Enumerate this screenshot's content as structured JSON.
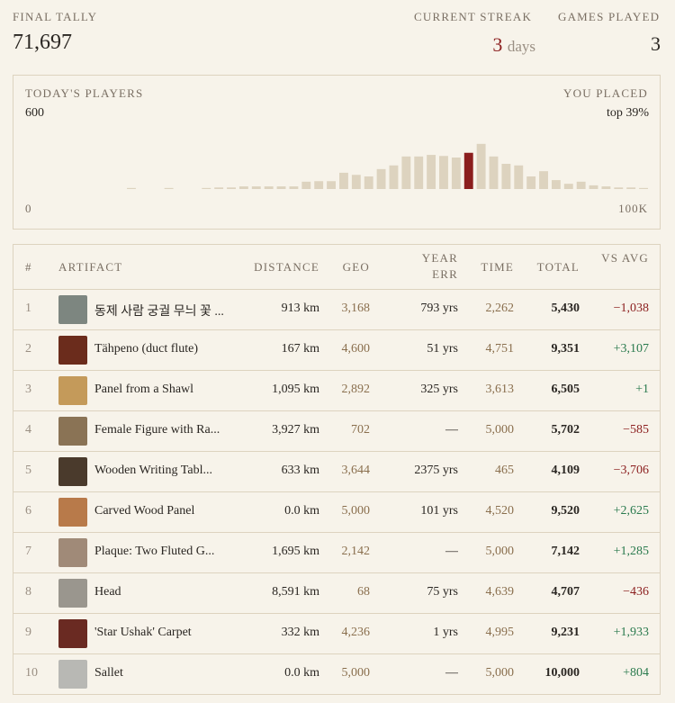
{
  "header": {
    "final_tally_label": "FINAL TALLY",
    "final_tally": "71,697",
    "streak_label": "CURRENT STREAK",
    "streak_value": "3",
    "streak_unit": "days",
    "games_label": "GAMES PLAYED",
    "games_value": "3"
  },
  "histogram": {
    "title": "TODAY'S PLAYERS",
    "placed_label": "YOU PLACED",
    "placed_value": "top 39%",
    "ylim": [
      0,
      600
    ],
    "xticks": [
      0,
      {
        "value": 100000,
        "label": "100K"
      }
    ],
    "values": [
      0,
      0,
      0,
      0,
      0,
      0,
      0,
      0,
      10,
      0,
      0,
      10,
      0,
      0,
      10,
      15,
      15,
      25,
      25,
      25,
      25,
      25,
      70,
      75,
      75,
      155,
      135,
      120,
      190,
      225,
      310,
      310,
      325,
      315,
      300,
      345,
      430,
      310,
      240,
      225,
      120,
      170,
      85,
      50,
      70,
      35,
      25,
      15,
      15,
      10
    ],
    "color": "#ddd3bf",
    "highlight_index": 35,
    "highlight_color": "#8b1e1e"
  },
  "table": {
    "columns": [
      "#",
      "ARTIFACT",
      "DISTANCE",
      "GEO",
      "YEAR ERR",
      "TIME",
      "TOTAL",
      "VS AVG"
    ],
    "rows": [
      [
        "1",
        "동제 사람 궁궐 무늬 꽃 ...",
        "913 km",
        "3,168",
        "793 yrs",
        "2,262",
        "5,430",
        "−1,038"
      ],
      [
        "2",
        "Tähpeno (duct flute)",
        "167 km",
        "4,600",
        "51 yrs",
        "4,751",
        "9,351",
        "+3,107"
      ],
      [
        "3",
        "Panel from a Shawl",
        "1,095 km",
        "2,892",
        "325 yrs",
        "3,613",
        "6,505",
        "+1"
      ],
      [
        "4",
        "Female Figure with Ra...",
        "3,927 km",
        "702",
        "—",
        "5,000",
        "5,702",
        "−585"
      ],
      [
        "5",
        "Wooden Writing Tabl...",
        "633 km",
        "3,644",
        "2375 yrs",
        "465",
        "4,109",
        "−3,706"
      ],
      [
        "6",
        "Carved Wood Panel",
        "0.0 km",
        "5,000",
        "101 yrs",
        "4,520",
        "9,520",
        "+2,625"
      ],
      [
        "7",
        "Plaque: Two Fluted G...",
        "1,695 km",
        "2,142",
        "—",
        "5,000",
        "7,142",
        "+1,285"
      ],
      [
        "8",
        "Head",
        "8,591 km",
        "68",
        "75 yrs",
        "4,639",
        "4,707",
        "−436"
      ],
      [
        "9",
        "'Star Ushak' Carpet",
        "332 km",
        "4,236",
        "1 yrs",
        "4,995",
        "9,231",
        "+1,933"
      ],
      [
        "10",
        "Sallet",
        "0.0 km",
        "5,000",
        "—",
        "5,000",
        "10,000",
        "+804"
      ]
    ]
  }
}
